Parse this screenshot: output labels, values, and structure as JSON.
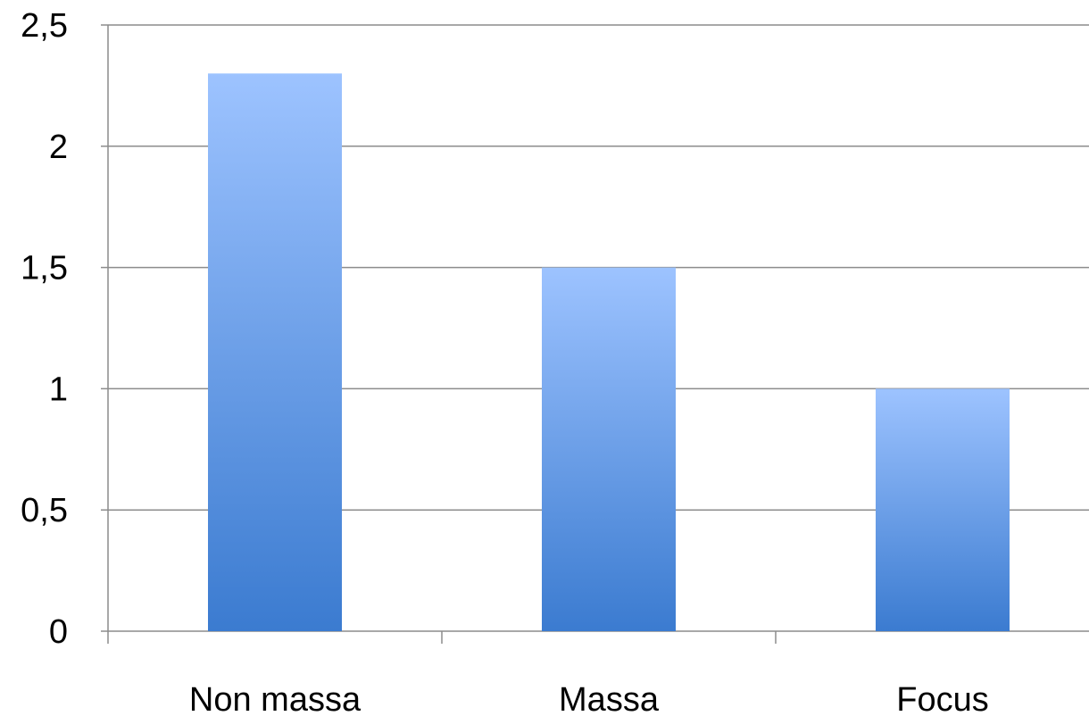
{
  "chart_data": {
    "type": "bar",
    "categories": [
      "Non massa",
      "Massa",
      "Focus"
    ],
    "values": [
      2.3,
      1.5,
      1.0
    ],
    "y_ticks": [
      "0",
      "0,5",
      "1",
      "1,5",
      "2",
      "2,5"
    ],
    "y_tick_values": [
      0,
      0.5,
      1,
      1.5,
      2,
      2.5
    ],
    "ylim": [
      0,
      2.5
    ],
    "grid": true,
    "legend": "none",
    "colors": {
      "bar_top": "#9dc3ff",
      "bar_bottom": "#3b7bd0",
      "grid": "#8c8c8c",
      "axis": "#8c8c8c"
    }
  }
}
